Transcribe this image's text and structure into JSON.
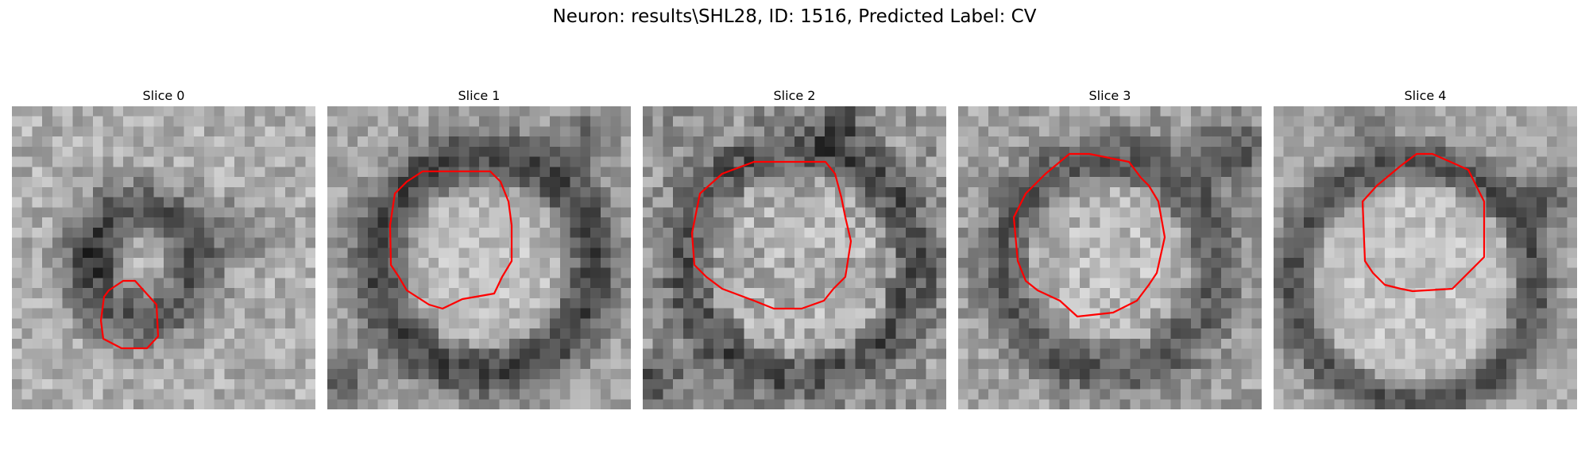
{
  "figure": {
    "title": "Neuron: results\\SHL28, ID: 1516, Predicted Label: CV",
    "contour_color": "#ff0000"
  },
  "slices": [
    {
      "title": "Slice 0"
    },
    {
      "title": "Slice 1"
    },
    {
      "title": "Slice 2"
    },
    {
      "title": "Slice 3"
    },
    {
      "title": "Slice 4"
    }
  ]
}
